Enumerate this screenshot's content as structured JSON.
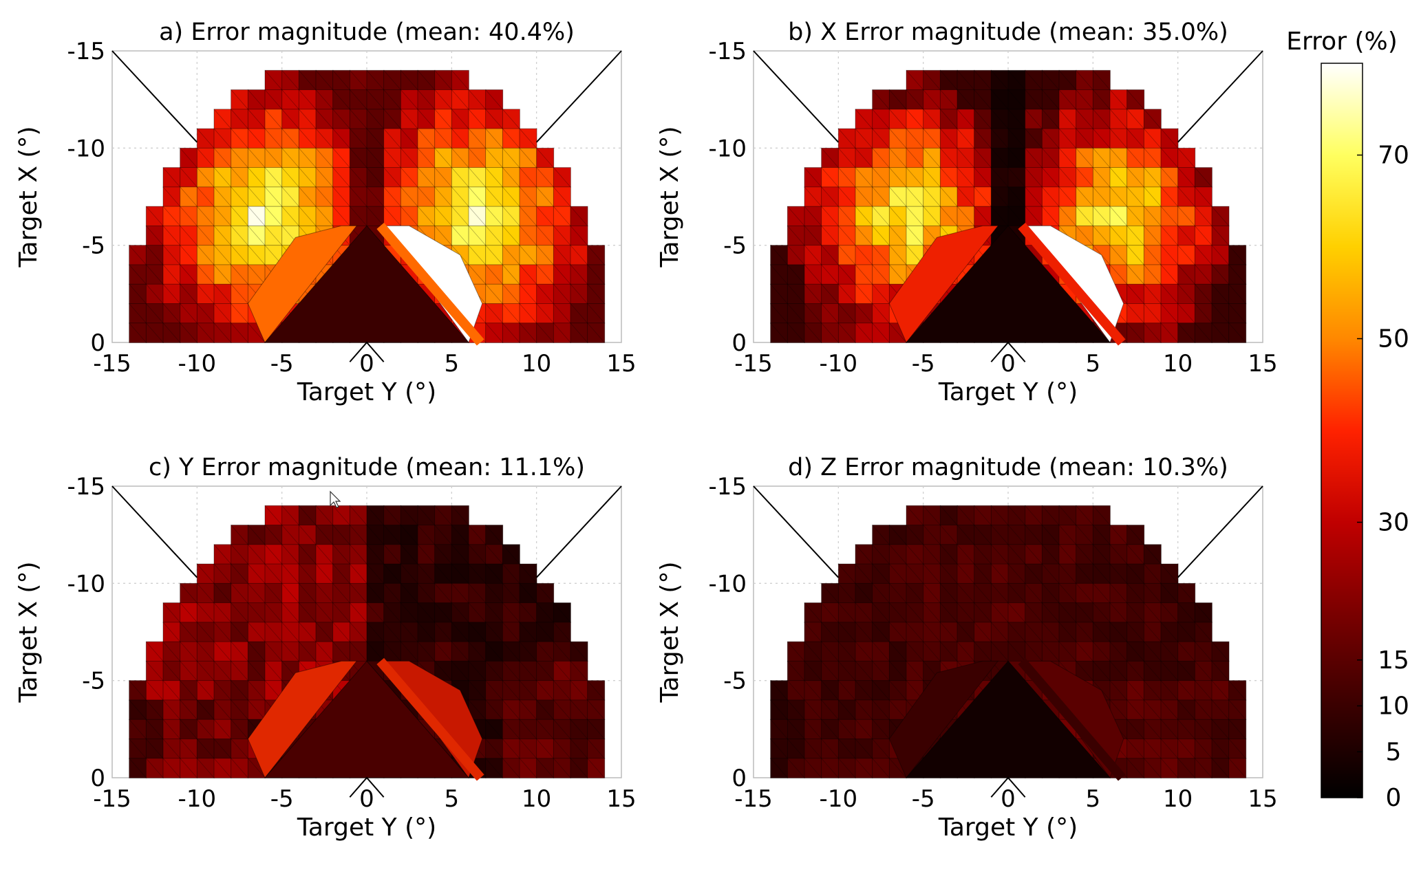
{
  "chart_data": [
    {
      "type": "heatmap",
      "panel": "a",
      "title": "a) Error magnitude (mean: 40.4%)",
      "xlabel": "Target Y (°)",
      "ylabel": "Target X (°)",
      "xticks": [
        "-15",
        "-10",
        "-5",
        "0",
        "5",
        "10",
        "15"
      ],
      "yticks": [
        "-15",
        "-10",
        "-5",
        "0"
      ],
      "xlim": [
        -15,
        15
      ],
      "ylim": [
        0,
        -15
      ],
      "grid": true,
      "pattern": "total",
      "mean_error_percent": 40.4
    },
    {
      "type": "heatmap",
      "panel": "b",
      "title": "b) X Error magnitude (mean: 35.0%)",
      "xlabel": "Target Y (°)",
      "ylabel": "Target X (°)",
      "xticks": [
        "-15",
        "-10",
        "-5",
        "0",
        "5",
        "10",
        "15"
      ],
      "yticks": [
        "-15",
        "-10",
        "-5",
        "0"
      ],
      "xlim": [
        -15,
        15
      ],
      "ylim": [
        0,
        -15
      ],
      "grid": true,
      "pattern": "x",
      "mean_error_percent": 35.0
    },
    {
      "type": "heatmap",
      "panel": "c",
      "title": "c) Y Error magnitude (mean: 11.1%)",
      "xlabel": "Target Y (°)",
      "ylabel": "Target X (°)",
      "xticks": [
        "-15",
        "-10",
        "-5",
        "0",
        "5",
        "10",
        "15"
      ],
      "yticks": [
        "-15",
        "-10",
        "-5",
        "0"
      ],
      "xlim": [
        -15,
        15
      ],
      "ylim": [
        0,
        -15
      ],
      "grid": true,
      "pattern": "y",
      "mean_error_percent": 11.1
    },
    {
      "type": "heatmap",
      "panel": "d",
      "title": "d) Z Error magnitude (mean: 10.3%)",
      "xlabel": "Target Y (°)",
      "ylabel": "Target X (°)",
      "xticks": [
        "-15",
        "-10",
        "-5",
        "0",
        "5",
        "10",
        "15"
      ],
      "yticks": [
        "-15",
        "-10",
        "-5",
        "0"
      ],
      "xlim": [
        -15,
        15
      ],
      "ylim": [
        0,
        -15
      ],
      "grid": true,
      "pattern": "z",
      "mean_error_percent": 10.3
    }
  ],
  "colorbar": {
    "title": "Error (%)",
    "ticks": [
      "0",
      "5",
      "10",
      "15",
      "30",
      "50",
      "70"
    ],
    "tick_values": [
      0,
      5,
      10,
      15,
      30,
      50,
      70
    ],
    "range": [
      0,
      80
    ],
    "colormap": "hot",
    "colors": [
      "#000000",
      "#3a0000",
      "#7a0000",
      "#c00000",
      "#ff2200",
      "#ff8800",
      "#ffd000",
      "#ffff60",
      "#ffffff"
    ]
  }
}
